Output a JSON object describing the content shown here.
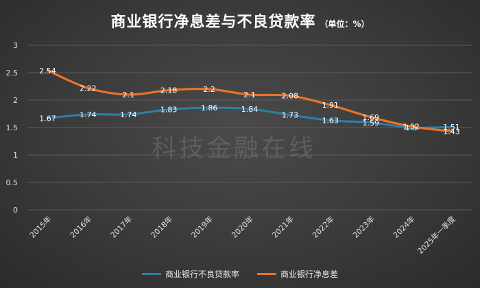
{
  "chart_data": {
    "type": "line",
    "title": "商业银行净息差与不良贷款率",
    "subtitle": "（单位：%）",
    "categories": [
      "2015年",
      "2016年",
      "2017年",
      "2018年",
      "2019年",
      "2020年",
      "2021年",
      "2022年",
      "2023年",
      "2024年",
      "2025年一季度"
    ],
    "series": [
      {
        "name": "商业银行不良贷款率",
        "color": "#2e7da6",
        "values": [
          1.67,
          1.74,
          1.74,
          1.83,
          1.86,
          1.84,
          1.73,
          1.63,
          1.59,
          1.5,
          1.51
        ]
      },
      {
        "name": "商业银行净息差",
        "color": "#e8732a",
        "values": [
          2.54,
          2.22,
          2.1,
          2.18,
          2.2,
          2.1,
          2.08,
          1.91,
          1.69,
          1.52,
          1.43
        ]
      }
    ],
    "data_labels": [
      [
        "1.67",
        "1.74",
        "1.74",
        "1.83",
        "1.86",
        "1.84",
        "1.73",
        "1.63",
        "1.59",
        "1.5",
        "1.51"
      ],
      [
        "2.54",
        "2.22",
        "2.1",
        "2.18",
        "2.2",
        "2.1",
        "2.08",
        "1.91",
        "1.69",
        "1.52",
        "1.43"
      ]
    ],
    "y_ticks": [
      "0",
      "0.5",
      "1",
      "1.5",
      "2",
      "2.5",
      "3"
    ],
    "ylim": [
      0,
      3
    ],
    "grid": true,
    "legend_position": "bottom"
  },
  "watermark": "科技金融在线"
}
